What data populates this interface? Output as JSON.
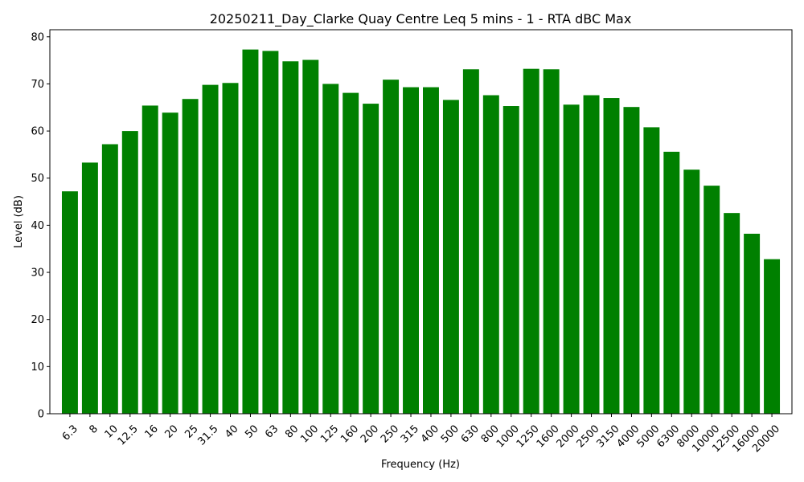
{
  "chart_data": {
    "type": "bar",
    "title": "20250211_Day_Clarke Quay Centre Leq 5 mins - 1 - RTA dBC Max",
    "xlabel": "Frequency (Hz)",
    "ylabel": "Level (dB)",
    "ylim": [
      0,
      81.5
    ],
    "yticks": [
      0,
      10,
      20,
      30,
      40,
      50,
      60,
      70,
      80
    ],
    "grid": false,
    "bar_color": "#008000",
    "categories": [
      "6.3",
      "8",
      "10",
      "12.5",
      "16",
      "20",
      "25",
      "31.5",
      "40",
      "50",
      "63",
      "80",
      "100",
      "125",
      "160",
      "200",
      "250",
      "315",
      "400",
      "500",
      "630",
      "800",
      "1000",
      "1250",
      "1600",
      "2000",
      "2500",
      "3150",
      "4000",
      "5000",
      "6300",
      "8000",
      "10000",
      "12500",
      "16000",
      "20000"
    ],
    "values": [
      47.2,
      53.3,
      57.2,
      60.0,
      65.4,
      63.9,
      66.8,
      69.8,
      70.2,
      77.3,
      77.0,
      74.8,
      75.1,
      70.0,
      68.1,
      65.8,
      70.9,
      69.3,
      69.3,
      66.6,
      73.1,
      67.6,
      65.3,
      73.2,
      73.1,
      65.6,
      67.6,
      67.0,
      65.1,
      60.8,
      55.6,
      51.8,
      48.4,
      42.6,
      38.2,
      32.8
    ]
  }
}
